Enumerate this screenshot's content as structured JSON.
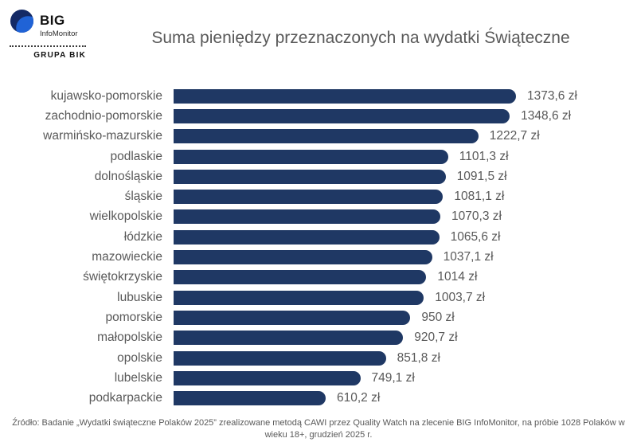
{
  "logo": {
    "big": "BIG",
    "infomonitor": "InfoMonitor",
    "grupa_bik": "GRUPA BIK",
    "colors": {
      "sphere_dark": "#142a66",
      "sphere_light": "#2063d6"
    }
  },
  "title": "Suma pieniędzy przeznaczonych na wydatki Świąteczne",
  "chart_data": {
    "type": "bar",
    "orientation": "horizontal",
    "title": "Suma pieniędzy przeznaczonych na wydatki Świąteczne",
    "xlabel": "",
    "ylabel": "",
    "unit": "zł",
    "xlim": [
      0,
      1373.6
    ],
    "grid": false,
    "legend": false,
    "bar_color": "#1f3864",
    "categories": [
      "kujawsko-pomorskie",
      "zachodnio-pomorskie",
      "warmińsko-mazurskie",
      "podlaskie",
      "dolnośląskie",
      "śląskie",
      "wielkopolskie",
      "łódzkie",
      "mazowieckie",
      "świętokrzyskie",
      "lubuskie",
      "pomorskie",
      "małopolskie",
      "opolskie",
      "lubelskie",
      "podkarpackie"
    ],
    "values": [
      1373.6,
      1348.6,
      1222.7,
      1101.3,
      1091.5,
      1081.1,
      1070.3,
      1065.6,
      1037.1,
      1014,
      1003.7,
      950,
      920.7,
      851.8,
      749.1,
      610.2
    ],
    "value_labels": [
      "1373,6 zł",
      "1348,6 zł",
      "1222,7 zł",
      "1101,3 zł",
      "1091,5 zł",
      "1081,1 zł",
      "1070,3 zł",
      "1065,6 zł",
      "1037,1 zł",
      "1014 zł",
      "1003,7 zł",
      "950 zł",
      "920,7 zł",
      "851,8 zł",
      "749,1 zł",
      "610,2 zł"
    ]
  },
  "footer": "Źródło: Badanie „Wydatki świąteczne Polaków 2025” zrealizowane metodą CAWI przez Quality Watch na zlecenie BIG InfoMonitor, na próbie 1028 Polaków w wieku 18+, grudzień 2025 r."
}
